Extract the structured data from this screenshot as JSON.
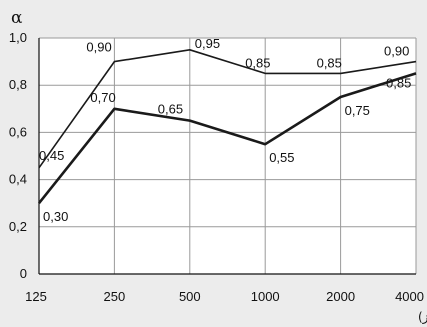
{
  "chart_data": {
    "type": "line",
    "ylabel": "α",
    "xlabel": "فركانس (هرتز)",
    "x": [
      "125",
      "250",
      "500",
      "1000",
      "2000",
      "4000"
    ],
    "ylim": [
      0,
      1.0
    ],
    "yticks": [
      0,
      0.2,
      0.4,
      0.6,
      0.8,
      1.0
    ],
    "ytick_labels": [
      "0",
      "0,2",
      "0,4",
      "0,6",
      "0,8",
      "1,0"
    ],
    "grid": true,
    "series": [
      {
        "values": [
          0.45,
          0.9,
          0.95,
          0.85,
          0.85,
          0.9
        ],
        "labels": [
          "0,45",
          "0,90",
          "0,95",
          "0,85",
          "0,85",
          "0,90"
        ],
        "line_width": 1.6
      },
      {
        "values": [
          0.3,
          0.7,
          0.65,
          0.55,
          0.75,
          0.85
        ],
        "labels": [
          "0,30",
          "0,70",
          "0,65",
          "0,55",
          "0,75",
          "0,85"
        ],
        "line_width": 2.6
      }
    ],
    "colors": {
      "line": "#1a1a1a",
      "grid": "#9a9a9a",
      "plot_bg": "#ffffff",
      "page_bg": "#ececec"
    }
  }
}
